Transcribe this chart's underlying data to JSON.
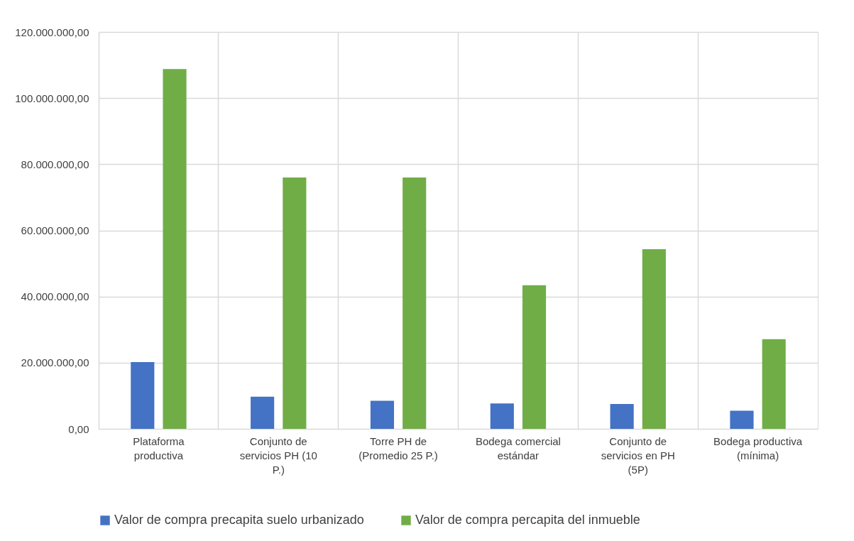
{
  "chart_data": {
    "type": "bar",
    "categories": [
      "Plataforma productiva",
      "Conjunto de servicios PH (10 P.)",
      "Torre PH de (Promedio 25 P.)",
      "Bodega comercial estándar",
      "Conjunto de servicios en PH (5P)",
      "Bodega productiva (mínima)"
    ],
    "series": [
      {
        "name": "Valor de compra precapita suelo urbanizado",
        "color": "#4472c4",
        "values": [
          20200000.0,
          9700000.0,
          8500000.0,
          7700000.0,
          7500000.0,
          5500000.0
        ]
      },
      {
        "name": "Valor de compra percapita del inmueble",
        "color": "#70ad47",
        "values": [
          108800000.0,
          76000000.0,
          76000000.0,
          43400000.0,
          54300000.0,
          27100000.0
        ]
      }
    ],
    "ylim": [
      0,
      120000000
    ],
    "yticks": [
      {
        "value": 0,
        "label": "0,00"
      },
      {
        "value": 20000000,
        "label": "20.000.000,00"
      },
      {
        "value": 40000000,
        "label": "40.000.000,00"
      },
      {
        "value": 60000000,
        "label": "60.000.000,00"
      },
      {
        "value": 80000000,
        "label": "80.000.000,00"
      },
      {
        "value": 100000000,
        "label": "100.000.000,00"
      },
      {
        "value": 120000000,
        "label": "120.000.000,00"
      }
    ],
    "grid": true,
    "legend": "bottom"
  }
}
